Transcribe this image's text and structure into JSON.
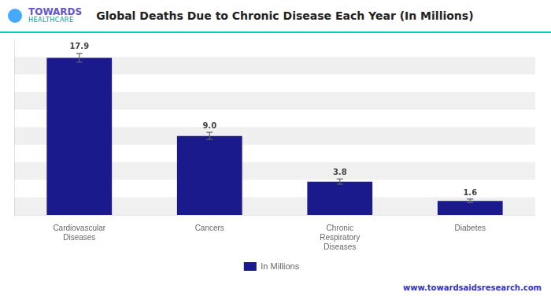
{
  "chart_data": {
    "type": "bar",
    "title": "Global Deaths Due to Chronic Disease Each Year (In Millions)",
    "categories": [
      "Cardiovascular\nDiseases",
      "Cancers",
      "Chronic\nRespiratory\nDiseases",
      "Diabetes"
    ],
    "series": [
      {
        "name": "In Millions",
        "color": "#1a1a8c",
        "values": [
          17.9,
          9.0,
          3.8,
          1.6
        ],
        "value_labels": [
          "17.9",
          "9.0",
          "3.8",
          "1.6"
        ],
        "errors": [
          0.5,
          0.4,
          0.3,
          0.2
        ]
      }
    ],
    "ylim": [
      0,
      20
    ],
    "yticks": [
      0,
      2,
      4,
      6,
      8,
      10,
      12,
      14,
      16,
      18,
      20
    ],
    "grid": true,
    "legend": "bottom",
    "data_labels": true,
    "tick_labels": "x",
    "annotations": [
      "TOWARDS",
      "HEALTHCARE",
      "www.towardsaidsresearch.com"
    ]
  }
}
